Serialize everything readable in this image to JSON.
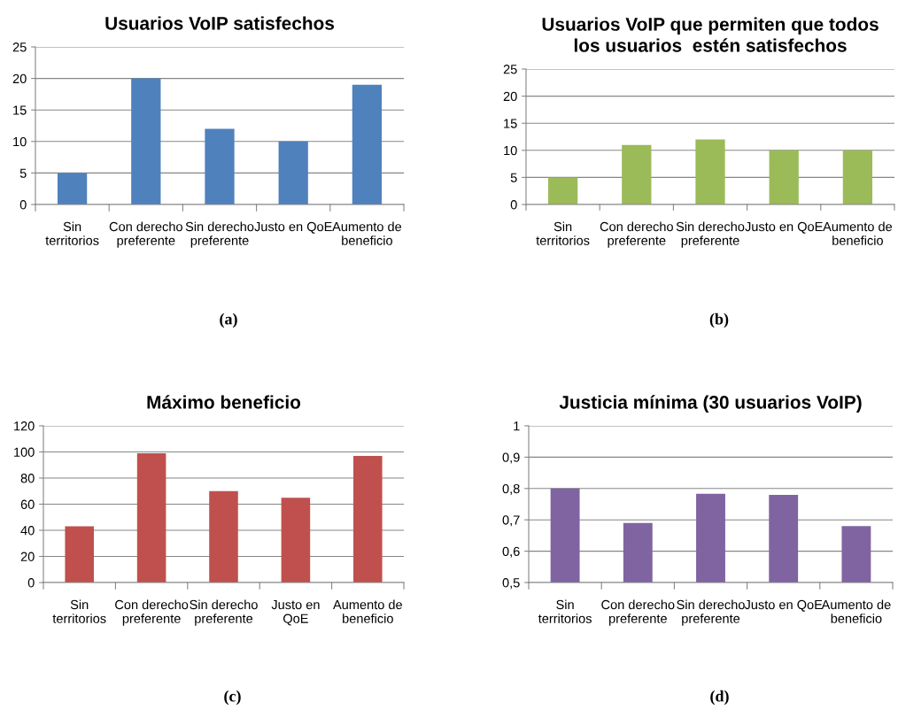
{
  "chart_data": [
    {
      "type": "bar",
      "title": "Usuarios VoIP satisfechos",
      "categories": [
        "Sin\nterritorios",
        "Con derecho\npreferente",
        "Sin derecho\npreferente",
        "Justo en QoE",
        "Aumento de\nbeneficio"
      ],
      "values": [
        5,
        20,
        12,
        10,
        19
      ],
      "color": "#4f81bd",
      "ylim": [
        0,
        25
      ],
      "yticks": [
        0,
        5,
        10,
        15,
        20,
        25
      ],
      "grid": "y",
      "annotations": [
        "(a)"
      ]
    },
    {
      "type": "bar",
      "title": "Usuarios VoIP que permiten que todos\nlos usuarios  estén satisfechos",
      "categories": [
        "Sin\nterritorios",
        "Con derecho\npreferente",
        "Sin derecho\npreferente",
        "Justo en QoE",
        "Aumento de\nbeneficio"
      ],
      "values": [
        5,
        11,
        12,
        10,
        10
      ],
      "color": "#9bbb59",
      "ylim": [
        0,
        25
      ],
      "yticks": [
        0,
        5,
        10,
        15,
        20,
        25
      ],
      "grid": "y",
      "annotations": [
        "(b)"
      ]
    },
    {
      "type": "bar",
      "title": "Máximo beneficio",
      "categories": [
        "Sin\nterritorios",
        "Con derecho\npreferente",
        "Sin derecho\npreferente",
        "Justo en\nQoE",
        "Aumento de\nbeneficio"
      ],
      "values": [
        43,
        99,
        70,
        65,
        97
      ],
      "color": "#c0504d",
      "ylim": [
        0,
        120
      ],
      "yticks": [
        0,
        20,
        40,
        60,
        80,
        100,
        120
      ],
      "grid": "y",
      "annotations": [
        "(c)"
      ]
    },
    {
      "type": "bar",
      "title": "Justicia mínima (30 usuarios VoIP)",
      "categories": [
        "Sin\nterritorios",
        "Con derecho\npreferente",
        "Sin derecho\npreferente",
        "Justo en QoE",
        "Aumento de\nbeneficio"
      ],
      "values": [
        0.8,
        0.69,
        0.783,
        0.78,
        0.68
      ],
      "color": "#8064a2",
      "ylim": [
        0.5,
        1
      ],
      "yticks": [
        {
          "value": 0.5,
          "label": "0,5"
        },
        {
          "value": 0.6,
          "label": "0,6"
        },
        {
          "value": 0.7,
          "label": "0,7"
        },
        {
          "value": 0.8,
          "label": "0,8"
        },
        {
          "value": 0.9,
          "label": "0,9"
        },
        {
          "value": 1,
          "label": "1"
        }
      ],
      "grid": "y",
      "annotations": [
        "(d)"
      ]
    }
  ]
}
